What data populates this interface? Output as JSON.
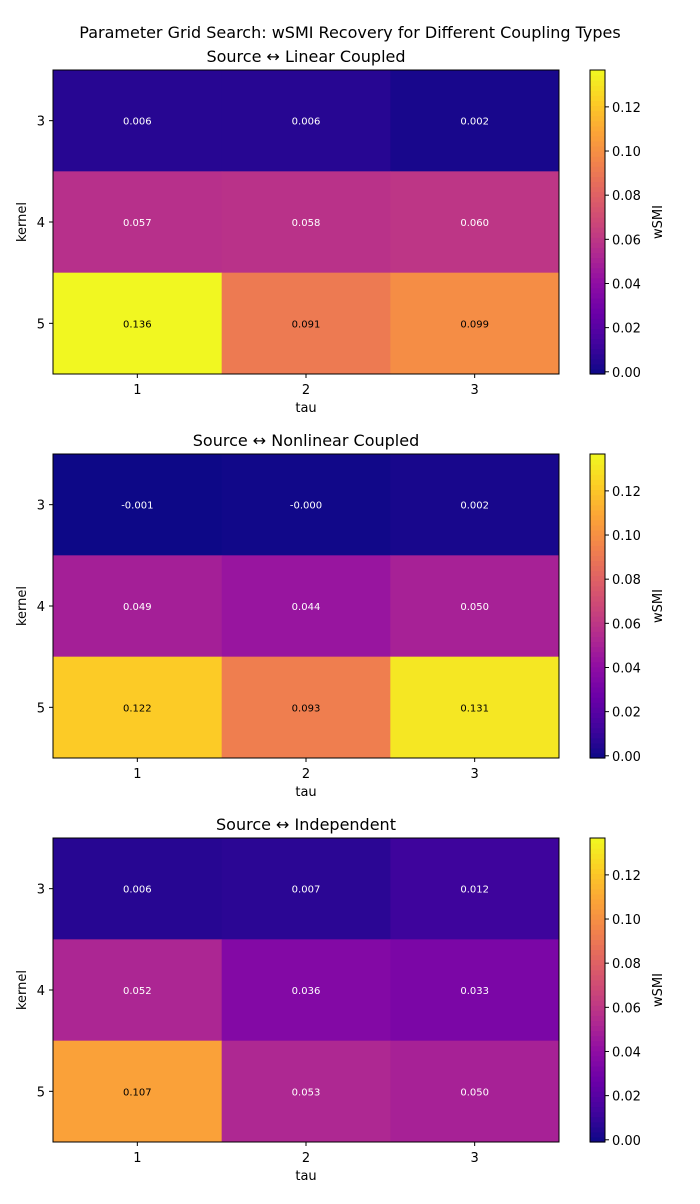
{
  "chart_data": {
    "type": "heatmap",
    "title": "Parameter Grid Search: wSMI Recovery for Different Coupling Types",
    "colormap": "plasma",
    "color_range": [
      -0.001,
      0.1367
    ],
    "colorbar_label": "wSMI",
    "colorbar_ticks": [
      "0.00",
      "0.02",
      "0.04",
      "0.06",
      "0.08",
      "0.10",
      "0.12"
    ],
    "panels": [
      {
        "title": "Source ↔ Linear Coupled",
        "xlabel": "tau",
        "ylabel": "kernel",
        "x_categories": [
          "1",
          "2",
          "3"
        ],
        "y_categories": [
          "3",
          "4",
          "5"
        ],
        "values": [
          [
            0.006,
            0.006,
            0.002
          ],
          [
            0.057,
            0.058,
            0.06
          ],
          [
            0.136,
            0.091,
            0.099
          ]
        ],
        "labels": [
          [
            "0.006",
            "0.006",
            "0.002"
          ],
          [
            "0.057",
            "0.058",
            "0.060"
          ],
          [
            "0.136",
            "0.091",
            "0.099"
          ]
        ]
      },
      {
        "title": "Source ↔ Nonlinear Coupled",
        "xlabel": "tau",
        "ylabel": "kernel",
        "x_categories": [
          "1",
          "2",
          "3"
        ],
        "y_categories": [
          "3",
          "4",
          "5"
        ],
        "values": [
          [
            -0.001,
            -0.0,
            0.002
          ],
          [
            0.049,
            0.044,
            0.05
          ],
          [
            0.122,
            0.093,
            0.131
          ]
        ],
        "labels": [
          [
            "-0.001",
            "-0.000",
            "0.002"
          ],
          [
            "0.049",
            "0.044",
            "0.050"
          ],
          [
            "0.122",
            "0.093",
            "0.131"
          ]
        ]
      },
      {
        "title": "Source ↔ Independent",
        "xlabel": "tau",
        "ylabel": "kernel",
        "x_categories": [
          "1",
          "2",
          "3"
        ],
        "y_categories": [
          "3",
          "4",
          "5"
        ],
        "values": [
          [
            0.006,
            0.007,
            0.012
          ],
          [
            0.052,
            0.036,
            0.033
          ],
          [
            0.107,
            0.053,
            0.05
          ]
        ],
        "labels": [
          [
            "0.006",
            "0.007",
            "0.012"
          ],
          [
            "0.052",
            "0.036",
            "0.033"
          ],
          [
            "0.107",
            "0.053",
            "0.050"
          ]
        ]
      }
    ]
  }
}
